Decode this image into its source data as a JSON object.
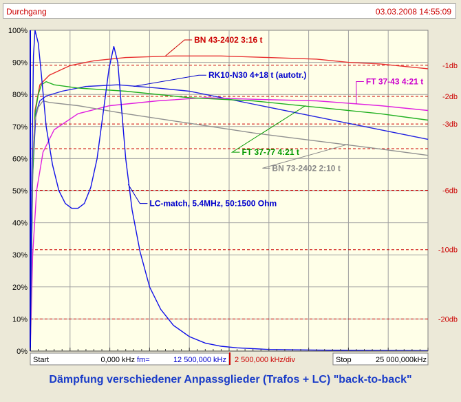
{
  "window": {
    "title": "Durchgang",
    "timestamp": "03.03.2008 14:55:09"
  },
  "colors": {
    "background": "#FFFFE8",
    "grid": "#A0A0A0",
    "db_lines": "#CC0000",
    "blue_axis": "#0000CC",
    "frame": "#ECE9D8"
  },
  "footer": {
    "start_label": "Start",
    "start_value": "0,000 kHz",
    "fm_label": "fm=",
    "fm_value": "12 500,000 kHz",
    "div_value": "2 500,000 kHz/div",
    "stop_label": "Stop",
    "stop_value": "25 000,000kHz"
  },
  "caption": "Dämpfung verschiedener Anpassglieder (Trafos + LC) \"back-to-back\"",
  "chart_data": {
    "type": "line",
    "x_unit": "kHz",
    "xlim": [
      0,
      25000
    ],
    "ylim": [
      0,
      100
    ],
    "grid": true,
    "y_ticks": [
      "0%",
      "10%",
      "20%",
      "30%",
      "40%",
      "50%",
      "60%",
      "70%",
      "80%",
      "90%",
      "100%"
    ],
    "db_lines": [
      {
        "label": "-1db",
        "y": 89.1
      },
      {
        "label": "-2db",
        "y": 79.4
      },
      {
        "label": "-3db",
        "y": 70.8
      },
      {
        "label": "",
        "y": 63.1
      },
      {
        "label": "-6db",
        "y": 50.1
      },
      {
        "label": "-10db",
        "y": 31.6
      },
      {
        "label": "-20db",
        "y": 10.0
      }
    ],
    "series": [
      {
        "name": "BN 43-2402 3:16 t",
        "color": "#e83030",
        "points": [
          [
            0,
            0
          ],
          [
            100,
            50
          ],
          [
            300,
            75
          ],
          [
            600,
            83
          ],
          [
            1200,
            86
          ],
          [
            2500,
            89
          ],
          [
            4000,
            90.5
          ],
          [
            6000,
            91.5
          ],
          [
            9000,
            92
          ],
          [
            12000,
            92
          ],
          [
            15000,
            91.5
          ],
          [
            18000,
            91
          ],
          [
            20000,
            90
          ],
          [
            22000,
            89.5
          ],
          [
            25000,
            88
          ]
        ]
      },
      {
        "name": "RK10-N30 4+18 t (autotr.)",
        "color": "#2020e0",
        "points": [
          [
            0,
            0
          ],
          [
            150,
            55
          ],
          [
            350,
            74
          ],
          [
            600,
            78
          ],
          [
            1000,
            79.5
          ],
          [
            2000,
            81
          ],
          [
            3500,
            82.5
          ],
          [
            5500,
            83
          ],
          [
            8000,
            82
          ],
          [
            10000,
            81
          ],
          [
            13000,
            78
          ],
          [
            17000,
            74
          ],
          [
            21000,
            70
          ],
          [
            25000,
            66
          ]
        ]
      },
      {
        "name": "FT 37-43 4:21 t",
        "color": "#e020e0",
        "points": [
          [
            0,
            0
          ],
          [
            150,
            30
          ],
          [
            400,
            50
          ],
          [
            800,
            62
          ],
          [
            1500,
            69
          ],
          [
            3000,
            74
          ],
          [
            5000,
            76.5
          ],
          [
            8000,
            78
          ],
          [
            11000,
            79
          ],
          [
            14000,
            78.5
          ],
          [
            18000,
            78
          ],
          [
            22000,
            76.5
          ],
          [
            25000,
            75
          ]
        ]
      },
      {
        "name": "FT 37-77 4:21 t",
        "color": "#20b020",
        "points": [
          [
            0,
            0
          ],
          [
            150,
            55
          ],
          [
            300,
            74
          ],
          [
            500,
            80
          ],
          [
            700,
            83
          ],
          [
            1000,
            84
          ],
          [
            1500,
            83
          ],
          [
            3000,
            82
          ],
          [
            6000,
            81
          ],
          [
            10000,
            79
          ],
          [
            14000,
            78
          ],
          [
            18000,
            76
          ],
          [
            22000,
            74
          ],
          [
            25000,
            72
          ]
        ]
      },
      {
        "name": "BN 73-2402 2:10 t",
        "color": "#909090",
        "points": [
          [
            0,
            0
          ],
          [
            150,
            60
          ],
          [
            300,
            72
          ],
          [
            500,
            76
          ],
          [
            800,
            78
          ],
          [
            1200,
            77.5
          ],
          [
            3000,
            76.5
          ],
          [
            6000,
            74
          ],
          [
            10000,
            71
          ],
          [
            14000,
            68
          ],
          [
            18000,
            65.5
          ],
          [
            22000,
            63
          ],
          [
            25000,
            61
          ]
        ]
      },
      {
        "name": "LC-match,  5.4MHz, 50:1500 Ohm",
        "color": "#1010e8",
        "points": [
          [
            0,
            0
          ],
          [
            100,
            55
          ],
          [
            200,
            92
          ],
          [
            300,
            100
          ],
          [
            500,
            96
          ],
          [
            700,
            86
          ],
          [
            1000,
            70
          ],
          [
            1400,
            58
          ],
          [
            1800,
            50
          ],
          [
            2200,
            46
          ],
          [
            2600,
            44.5
          ],
          [
            3000,
            44.5
          ],
          [
            3400,
            46
          ],
          [
            3800,
            51
          ],
          [
            4200,
            60
          ],
          [
            4600,
            75
          ],
          [
            4950,
            88
          ],
          [
            5250,
            95
          ],
          [
            5500,
            90
          ],
          [
            5750,
            75
          ],
          [
            6000,
            60
          ],
          [
            6400,
            44
          ],
          [
            6900,
            31
          ],
          [
            7500,
            20
          ],
          [
            8200,
            13
          ],
          [
            9000,
            8
          ],
          [
            10000,
            4.5
          ],
          [
            11000,
            2.5
          ],
          [
            12000,
            1.5
          ],
          [
            13000,
            1
          ],
          [
            15000,
            0.5
          ],
          [
            18000,
            0.3
          ],
          [
            21000,
            0.2
          ],
          [
            25000,
            0.1
          ]
        ]
      }
    ],
    "annotations": [
      {
        "series": 0,
        "text": "BN 43-2402 3:16 t",
        "color": "#cc0000",
        "at": [
          8500,
          92
        ],
        "label": [
          10300,
          97
        ]
      },
      {
        "series": 1,
        "text": "RK10-N30 4+18 t (autotr.)",
        "color": "#0000cc",
        "at": [
          6500,
          82.5
        ],
        "label": [
          11200,
          86
        ]
      },
      {
        "series": 2,
        "text": "FT 37-43 4:21 t",
        "color": "#cc00cc",
        "at": [
          20500,
          77
        ],
        "label": [
          21100,
          84
        ]
      },
      {
        "series": 3,
        "text": "FT 37-77 4:21 t",
        "color": "#009900",
        "at": [
          17300,
          76.5
        ],
        "label": [
          13300,
          62
        ]
      },
      {
        "series": 4,
        "text": "BN 73-2402 2:10 t",
        "color": "#888888",
        "at": [
          20000,
          64.5
        ],
        "label": [
          15200,
          57
        ]
      },
      {
        "series": 5,
        "text": "LC-match,  5.4MHz, 50:1500 Ohm",
        "color": "#0000cc",
        "at": [
          6150,
          52
        ],
        "label": [
          7500,
          46
        ]
      }
    ]
  }
}
